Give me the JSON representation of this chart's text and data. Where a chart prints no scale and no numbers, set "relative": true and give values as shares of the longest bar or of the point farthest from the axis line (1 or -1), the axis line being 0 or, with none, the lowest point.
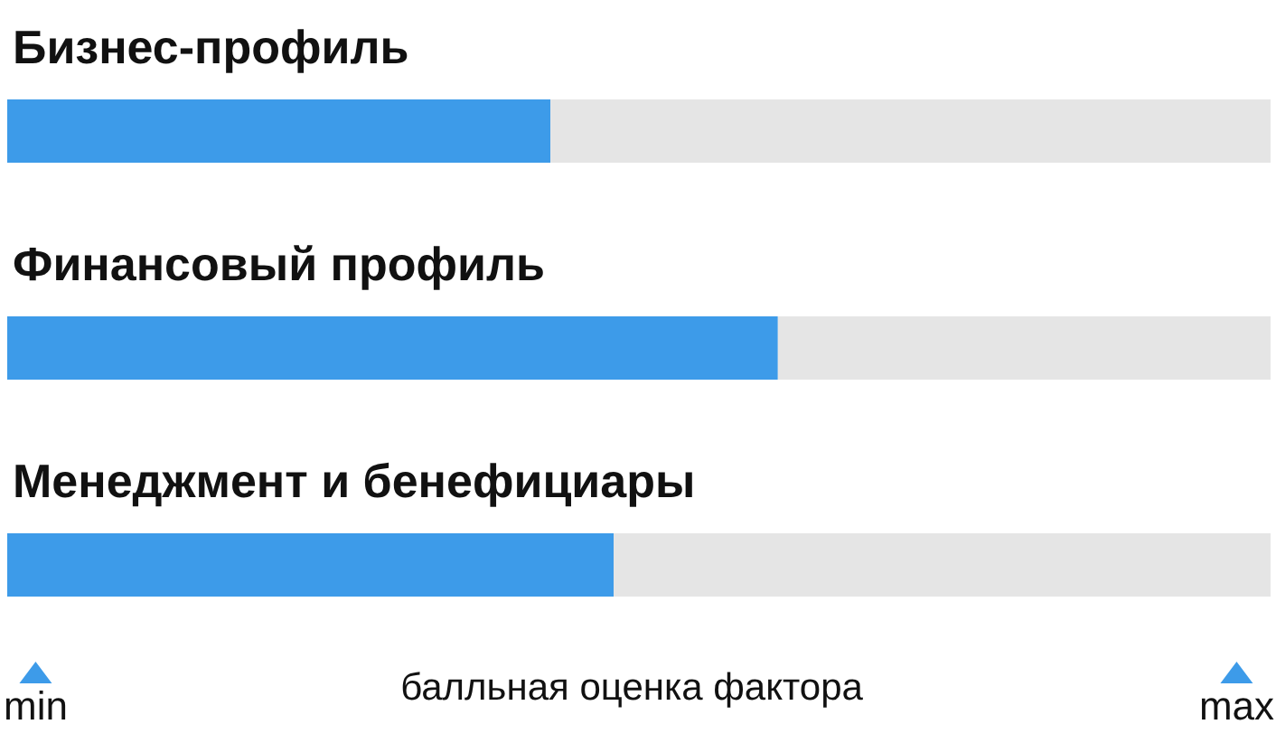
{
  "chart_data": {
    "type": "bar",
    "orientation": "horizontal",
    "stacked": true,
    "relative": true,
    "categories": [
      "Бизнес-профиль",
      "Финансовый профиль",
      "Менеджмент и бенефициары"
    ],
    "series": [
      {
        "color": "#3d9be9",
        "values": [
          0.43,
          0.61,
          0.48
        ]
      },
      {
        "color": "#e5e5e5",
        "values": [
          0.57,
          0.39,
          0.52
        ]
      }
    ],
    "xlabel": "балльная оценка фактора",
    "annotations": [
      "min",
      "max"
    ]
  }
}
